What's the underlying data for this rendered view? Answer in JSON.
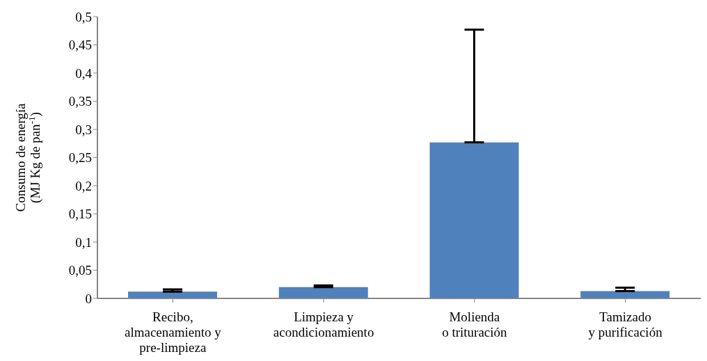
{
  "chart_data": {
    "type": "bar",
    "ylabel": "Consumo de energía\n(MJ Kg de pan$^{-1}$)",
    "categories": [
      "Recibo,\nalmacenamiento y\npre-limpieza",
      "Limpieza y\nacondicionamiento",
      "Molienda\no trituración",
      "Tamizado\ny purificación"
    ],
    "values": [
      0.012,
      0.02,
      0.277,
      0.013
    ],
    "errors": [
      [
        0.012,
        0.016
      ],
      [
        0.02,
        0.023
      ],
      [
        0.277,
        0.477
      ],
      [
        0.013,
        0.019
      ]
    ],
    "color": "#4f81bd",
    "ylim": [
      0,
      0.5
    ],
    "yticks": [
      {
        "value": 0,
        "label": "0"
      },
      {
        "value": 0.05,
        "label": "0,05"
      },
      {
        "value": 0.1,
        "label": "0,1"
      },
      {
        "value": 0.15,
        "label": "0,15"
      },
      {
        "value": 0.2,
        "label": "0,2"
      },
      {
        "value": 0.25,
        "label": "0,25"
      },
      {
        "value": 0.3,
        "label": "0,3"
      },
      {
        "value": 0.35,
        "label": "0,35"
      },
      {
        "value": 0.4,
        "label": "0,4"
      },
      {
        "value": 0.45,
        "label": "0,45"
      },
      {
        "value": 0.5,
        "label": "0,5"
      }
    ],
    "grid": false,
    "legend": false
  }
}
